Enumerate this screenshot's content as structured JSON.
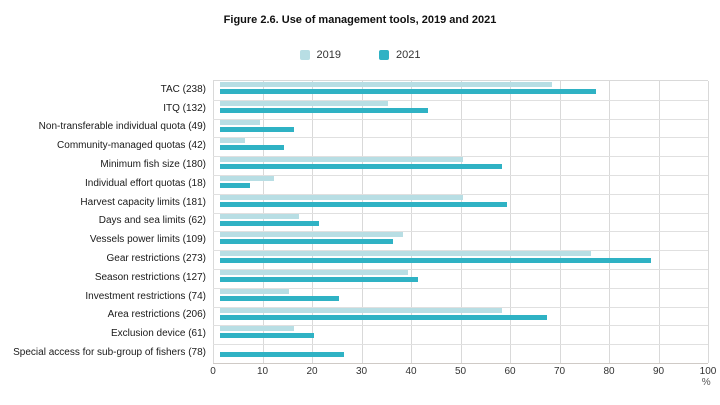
{
  "title": "Figure 2.6. Use of management tools, 2019 and 2021",
  "chart_data": {
    "type": "bar",
    "orientation": "horizontal",
    "title": "Figure 2.6. Use of management tools, 2019 and 2021",
    "categories": [
      "TAC (238)",
      "ITQ (132)",
      "Non-transferable individual quota (49)",
      "Community-managed quotas (42)",
      "Minimum fish size (180)",
      "Individual effort quotas (18)",
      "Harvest capacity limits (181)",
      "Days and sea limits (62)",
      "Vessels power limits (109)",
      "Gear restrictions (273)",
      "Season restrictions (127)",
      "Investment restrictions (74)",
      "Area restrictions (206)",
      "Exclusion device (61)",
      "Special access for sub-group of fishers (78)"
    ],
    "series": [
      {
        "name": "2019",
        "color": "#b8dee4",
        "values": [
          67,
          34,
          8,
          5,
          49,
          11,
          49,
          16,
          37,
          75,
          38,
          14,
          57,
          15,
          null
        ]
      },
      {
        "name": "2021",
        "color": "#2fb2c4",
        "values": [
          76,
          42,
          15,
          13,
          57,
          6,
          58,
          20,
          35,
          87,
          40,
          24,
          66,
          19,
          25
        ]
      }
    ],
    "xlabel": "%",
    "xlim": [
      0,
      100
    ],
    "x_ticks": [
      0,
      10,
      20,
      30,
      40,
      50,
      60,
      70,
      80,
      90,
      100
    ],
    "grid": true,
    "legend_position": "top",
    "colors": {
      "grid": "#d9d9d9",
      "axis_line": "#cfcac6",
      "text": "#1a1a1a"
    }
  }
}
